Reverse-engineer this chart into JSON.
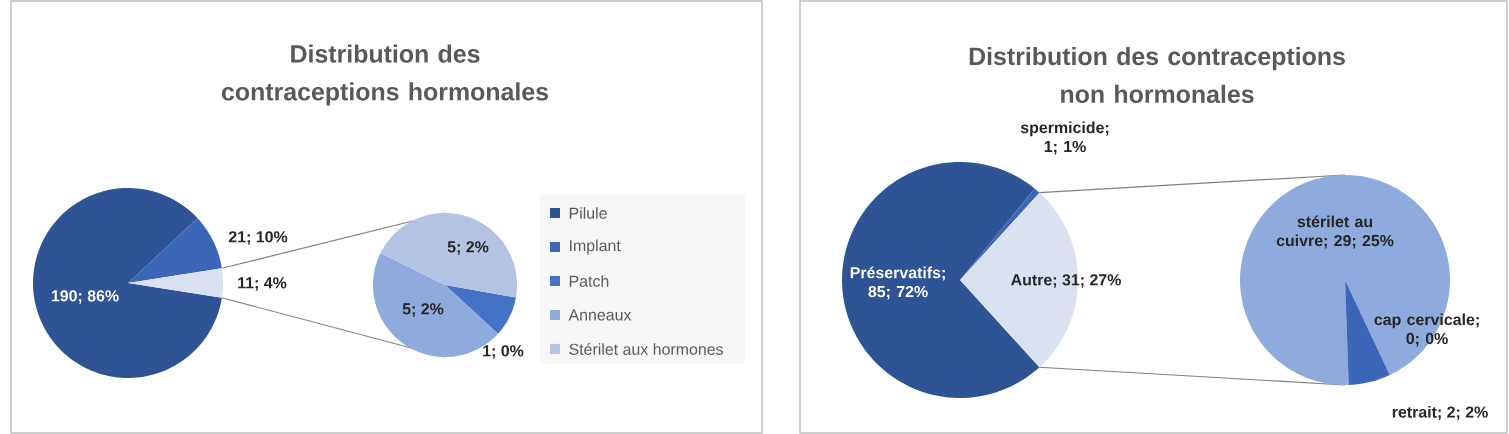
{
  "chart_data": [
    {
      "type": "pie",
      "title": "Distribution des contraceptions hormonales",
      "categories": [
        "Pilule",
        "Implant",
        null
      ],
      "values": [
        190,
        21,
        11
      ],
      "colors": [
        "#2f5496",
        "#3c67b8",
        "#dae1f1"
      ],
      "value_labels": [
        "190; 86%",
        "21; 10%",
        "11; 4%"
      ],
      "legend": "right"
    },
    {
      "type": "pie",
      "categories": [
        "Patch",
        "Anneaux",
        "Stérilet aux hormones"
      ],
      "values": [
        1,
        5,
        5
      ],
      "colors": [
        "#4472c4",
        "#8faadc",
        "#b4c3e4"
      ],
      "value_labels": [
        "1; 0%",
        "5; 2%",
        "5; 2%"
      ],
      "legend": "right"
    },
    {
      "type": "pie",
      "title": "Distribution des contraceptions non hormonales",
      "categories": [
        "Préservatifs",
        "spermicide",
        "Autre"
      ],
      "values": [
        85,
        1,
        31
      ],
      "colors": [
        "#2f5496",
        "#3c67b8",
        "#dae1f1"
      ],
      "value_labels": [
        "; 85; 72%",
        "; 1; 1%",
        "; 31; 27%"
      ]
    },
    {
      "type": "pie",
      "categories": [
        "stérilet au cuivre",
        "cap cervicale",
        "retrait"
      ],
      "values": [
        29,
        0,
        2
      ],
      "colors": [
        "#8faadc",
        "#4472c4",
        "#3c67b8"
      ],
      "value_labels": [
        "; 29; 25%",
        "; 0; 0%",
        "; 2; 2%"
      ]
    }
  ]
}
